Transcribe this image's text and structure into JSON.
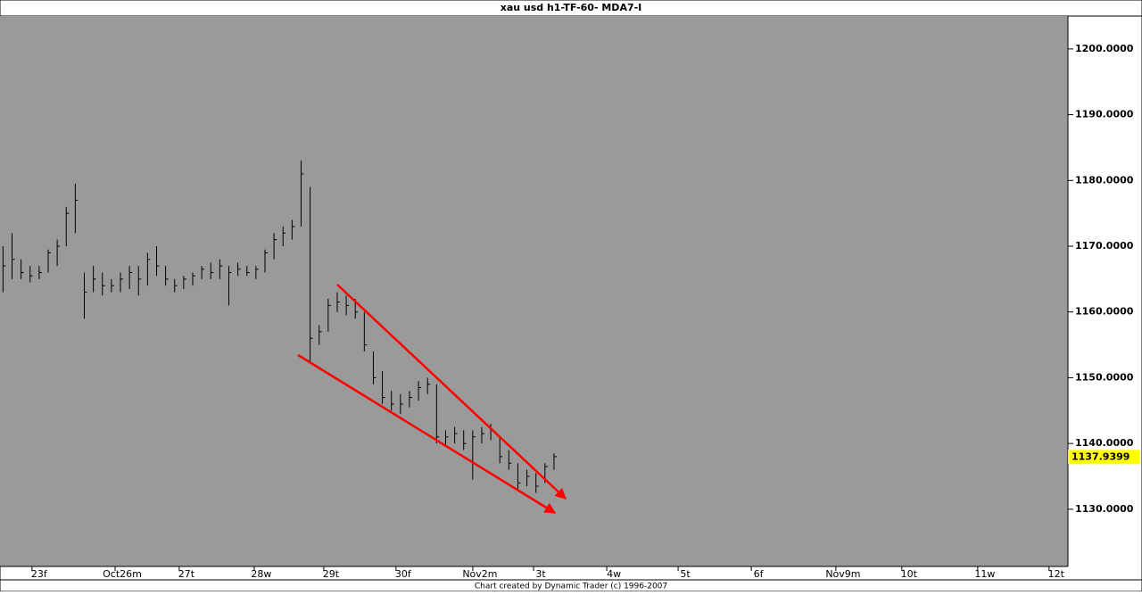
{
  "chart_data": {
    "type": "hlc",
    "title": "xau usd h1-TF-60- MDA7-I",
    "footer": "Chart created by Dynamic Trader  (c) 1996-2007",
    "last_price": 1137.9399,
    "x": [
      1,
      4,
      7,
      10,
      13,
      16,
      19,
      22,
      25,
      28,
      31,
      34,
      37,
      40,
      43,
      46,
      49,
      52,
      55,
      58,
      61,
      64,
      67,
      70,
      73,
      76,
      79,
      82,
      85,
      88,
      91,
      94,
      97,
      100,
      103,
      106,
      109,
      112,
      115,
      118,
      121,
      124,
      127,
      130,
      133,
      136,
      139,
      142,
      145,
      148,
      151,
      154,
      157,
      160,
      163,
      166,
      169,
      172,
      175,
      178,
      181,
      184
    ],
    "high": [
      1170,
      1172,
      1168,
      1167,
      1167,
      1169.5,
      1171,
      1176,
      1179.5,
      1166,
      1167,
      1166,
      1165,
      1166,
      1167,
      1167,
      1169,
      1170,
      1167,
      1165,
      1165.5,
      1166,
      1167,
      1167.5,
      1168,
      1167,
      1167.5,
      1167,
      1167,
      1169.5,
      1172,
      1173,
      1174,
      1183,
      1179,
      1158,
      1162,
      1163,
      1162.5,
      1162,
      1160,
      1154,
      1151,
      1148,
      1147.5,
      1148,
      1149.5,
      1150,
      1149,
      1142,
      1142.5,
      1142,
      1142,
      1142.5,
      1143,
      1141,
      1139,
      1137,
      1136,
      1135.5,
      1137,
      1138.5
    ],
    "low": [
      1163,
      1165,
      1165,
      1164.5,
      1165,
      1166,
      1167,
      1170,
      1172,
      1159,
      1163,
      1162.5,
      1163,
      1163,
      1163.5,
      1162.5,
      1164,
      1165.5,
      1164,
      1163,
      1163.5,
      1164,
      1165,
      1165,
      1165,
      1161,
      1165.5,
      1165.5,
      1165,
      1166,
      1168,
      1170,
      1171,
      1173,
      1152.5,
      1155,
      1157,
      1160,
      1159.5,
      1159,
      1154,
      1149,
      1146,
      1145,
      1144.5,
      1145.5,
      1146.5,
      1147.5,
      1140,
      1139.5,
      1140,
      1139,
      1134.5,
      1140,
      1140.5,
      1137,
      1136,
      1133,
      1133.5,
      1132.5,
      1134,
      1136
    ],
    "close": [
      1167,
      1168,
      1166,
      1165.5,
      1166,
      1169,
      1170,
      1175,
      1177,
      1163,
      1165,
      1164,
      1164,
      1165,
      1166,
      1165,
      1168,
      1167,
      1165,
      1164,
      1165,
      1165.5,
      1166.5,
      1166,
      1167,
      1166,
      1166.5,
      1166,
      1166.5,
      1169,
      1171,
      1172,
      1173,
      1181,
      1156,
      1157,
      1161,
      1161.5,
      1161,
      1160,
      1155,
      1150,
      1147,
      1146,
      1146,
      1147,
      1148.5,
      1149,
      1141,
      1141,
      1141.5,
      1140,
      1141,
      1141.5,
      1142,
      1138,
      1137,
      1134,
      1135,
      1133.5,
      1136.5,
      1138
    ],
    "xlim": [
      0,
      354.7
    ],
    "xticks": [
      {
        "value": 13,
        "label": "23f"
      },
      {
        "value": 40.6,
        "label": "Oct26m"
      },
      {
        "value": 61.9,
        "label": "27t"
      },
      {
        "value": 86.8,
        "label": "28w"
      },
      {
        "value": 109.9,
        "label": "29t"
      },
      {
        "value": 133.9,
        "label": "30f"
      },
      {
        "value": 159.4,
        "label": "Nov2m"
      },
      {
        "value": 179.6,
        "label": "3t"
      },
      {
        "value": 203.9,
        "label": "4w"
      },
      {
        "value": 227.6,
        "label": "5t"
      },
      {
        "value": 251.9,
        "label": "6f"
      },
      {
        "value": 280,
        "label": "Nov9m"
      },
      {
        "value": 301.9,
        "label": "10t"
      },
      {
        "value": 327.1,
        "label": "11w"
      },
      {
        "value": 350.8,
        "label": "12t"
      }
    ],
    "ylim": [
      1121.3,
      1205.0
    ],
    "yticks": [
      {
        "value": 1130,
        "label": "1130.0000"
      },
      {
        "value": 1140,
        "label": "1140.0000"
      },
      {
        "value": 1150,
        "label": "1150.0000"
      },
      {
        "value": 1160,
        "label": "1160.0000"
      },
      {
        "value": 1170,
        "label": "1170.0000"
      },
      {
        "value": 1180,
        "label": "1180.0000"
      },
      {
        "value": 1190,
        "label": "1190.0000"
      },
      {
        "value": 1200,
        "label": "1200.0000"
      }
    ],
    "color": "#000000",
    "plot_background": "#9a9a9a"
  }
}
